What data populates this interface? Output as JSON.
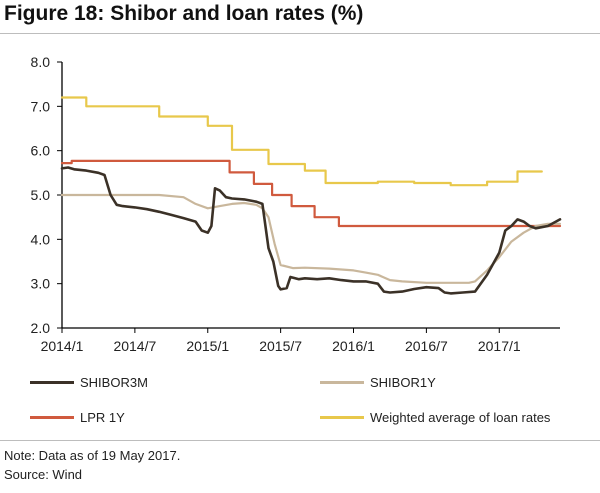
{
  "figure_title": "Figure 18: Shibor and loan rates (%)",
  "note": "Note: Data as of 19 May 2017.",
  "source": "Source: Wind",
  "colors": {
    "SHIBOR3M": "#3b3127",
    "SHIBOR1Y": "#c9b79c",
    "LPR 1Y": "#d05a3e",
    "Weighted average of loan rates": "#e8c84b"
  },
  "chart_data": {
    "type": "line",
    "title": "Shibor and loan rates (%)",
    "xlabel": "",
    "ylabel": "",
    "ylim": [
      2.0,
      8.0
    ],
    "yticks": [
      "2.0",
      "3.0",
      "4.0",
      "5.0",
      "6.0",
      "7.0",
      "8.0"
    ],
    "xlim": [
      0,
      41
    ],
    "xticks": [
      {
        "label": "2014/1",
        "x": 0
      },
      {
        "label": "2014/7",
        "x": 6
      },
      {
        "label": "2015/1",
        "x": 12
      },
      {
        "label": "2015/7",
        "x": 18
      },
      {
        "label": "2016/1",
        "x": 24
      },
      {
        "label": "2016/7",
        "x": 30
      },
      {
        "label": "2017/1",
        "x": 36
      }
    ],
    "grid": false,
    "legend": "bottom",
    "series": [
      {
        "name": "SHIBOR3M",
        "step": false,
        "width": 2.6,
        "points": [
          [
            0,
            5.6
          ],
          [
            0.5,
            5.62
          ],
          [
            1,
            5.58
          ],
          [
            2,
            5.55
          ],
          [
            3,
            5.5
          ],
          [
            3.5,
            5.45
          ],
          [
            4,
            5.0
          ],
          [
            4.5,
            4.78
          ],
          [
            5,
            4.75
          ],
          [
            6,
            4.72
          ],
          [
            7,
            4.68
          ],
          [
            8,
            4.62
          ],
          [
            9,
            4.55
          ],
          [
            10,
            4.48
          ],
          [
            11,
            4.4
          ],
          [
            11.5,
            4.2
          ],
          [
            12,
            4.15
          ],
          [
            12.3,
            4.3
          ],
          [
            12.6,
            5.15
          ],
          [
            13,
            5.1
          ],
          [
            13.5,
            4.95
          ],
          [
            14,
            4.92
          ],
          [
            15,
            4.9
          ],
          [
            16,
            4.85
          ],
          [
            16.5,
            4.8
          ],
          [
            17,
            3.8
          ],
          [
            17.4,
            3.5
          ],
          [
            17.8,
            2.95
          ],
          [
            18,
            2.87
          ],
          [
            18.5,
            2.9
          ],
          [
            18.8,
            3.15
          ],
          [
            19.5,
            3.1
          ],
          [
            20,
            3.12
          ],
          [
            21,
            3.1
          ],
          [
            22,
            3.12
          ],
          [
            23,
            3.08
          ],
          [
            24,
            3.05
          ],
          [
            25,
            3.05
          ],
          [
            26,
            3.0
          ],
          [
            26.5,
            2.82
          ],
          [
            27,
            2.8
          ],
          [
            28,
            2.82
          ],
          [
            29,
            2.88
          ],
          [
            30,
            2.92
          ],
          [
            31,
            2.9
          ],
          [
            31.5,
            2.8
          ],
          [
            32,
            2.78
          ],
          [
            33,
            2.8
          ],
          [
            34,
            2.82
          ],
          [
            35,
            3.2
          ],
          [
            36,
            3.7
          ],
          [
            36.5,
            4.2
          ],
          [
            37,
            4.3
          ],
          [
            37.5,
            4.45
          ],
          [
            38,
            4.4
          ],
          [
            38.5,
            4.3
          ],
          [
            39,
            4.25
          ],
          [
            40,
            4.3
          ],
          [
            41,
            4.45
          ]
        ]
      },
      {
        "name": "SHIBOR1Y",
        "step": false,
        "width": 2.2,
        "points": [
          [
            0,
            5.0
          ],
          [
            2,
            5.0
          ],
          [
            4,
            5.0
          ],
          [
            6,
            5.0
          ],
          [
            8,
            5.0
          ],
          [
            10,
            4.95
          ],
          [
            11,
            4.8
          ],
          [
            12,
            4.7
          ],
          [
            13,
            4.75
          ],
          [
            14,
            4.8
          ],
          [
            15,
            4.82
          ],
          [
            16,
            4.78
          ],
          [
            16.5,
            4.7
          ],
          [
            17,
            4.5
          ],
          [
            17.5,
            3.9
          ],
          [
            18,
            3.42
          ],
          [
            19,
            3.35
          ],
          [
            20,
            3.36
          ],
          [
            22,
            3.34
          ],
          [
            24,
            3.3
          ],
          [
            25,
            3.25
          ],
          [
            26,
            3.2
          ],
          [
            27,
            3.08
          ],
          [
            28,
            3.05
          ],
          [
            30,
            3.02
          ],
          [
            32,
            3.02
          ],
          [
            33.5,
            3.02
          ],
          [
            34,
            3.05
          ],
          [
            35,
            3.3
          ],
          [
            36,
            3.6
          ],
          [
            37,
            3.95
          ],
          [
            38,
            4.15
          ],
          [
            39,
            4.3
          ],
          [
            40,
            4.35
          ],
          [
            41,
            4.35
          ]
        ]
      },
      {
        "name": "LPR 1Y",
        "step": true,
        "width": 2.2,
        "points": [
          [
            0,
            5.72
          ],
          [
            0.8,
            5.77
          ],
          [
            13.8,
            5.51
          ],
          [
            15.8,
            5.25
          ],
          [
            17.3,
            5.0
          ],
          [
            18.9,
            4.75
          ],
          [
            20.8,
            4.5
          ],
          [
            22.8,
            4.3
          ],
          [
            41,
            4.3
          ]
        ]
      },
      {
        "name": "Weighted average of loan rates",
        "step": true,
        "width": 2.2,
        "points": [
          [
            0,
            7.2
          ],
          [
            2,
            7.0
          ],
          [
            8,
            6.77
          ],
          [
            10,
            6.77
          ],
          [
            12,
            6.56
          ],
          [
            14,
            6.02
          ],
          [
            17,
            5.7
          ],
          [
            20,
            5.55
          ],
          [
            21.7,
            5.27
          ],
          [
            26,
            5.3
          ],
          [
            29,
            5.27
          ],
          [
            32,
            5.22
          ],
          [
            35,
            5.3
          ],
          [
            37.5,
            5.53
          ],
          [
            39.5,
            5.53
          ]
        ]
      }
    ]
  },
  "legend": {
    "items": [
      {
        "label": "SHIBOR3M"
      },
      {
        "label": "SHIBOR1Y"
      },
      {
        "label": "LPR 1Y"
      },
      {
        "label": "Weighted average of loan rates"
      }
    ]
  }
}
